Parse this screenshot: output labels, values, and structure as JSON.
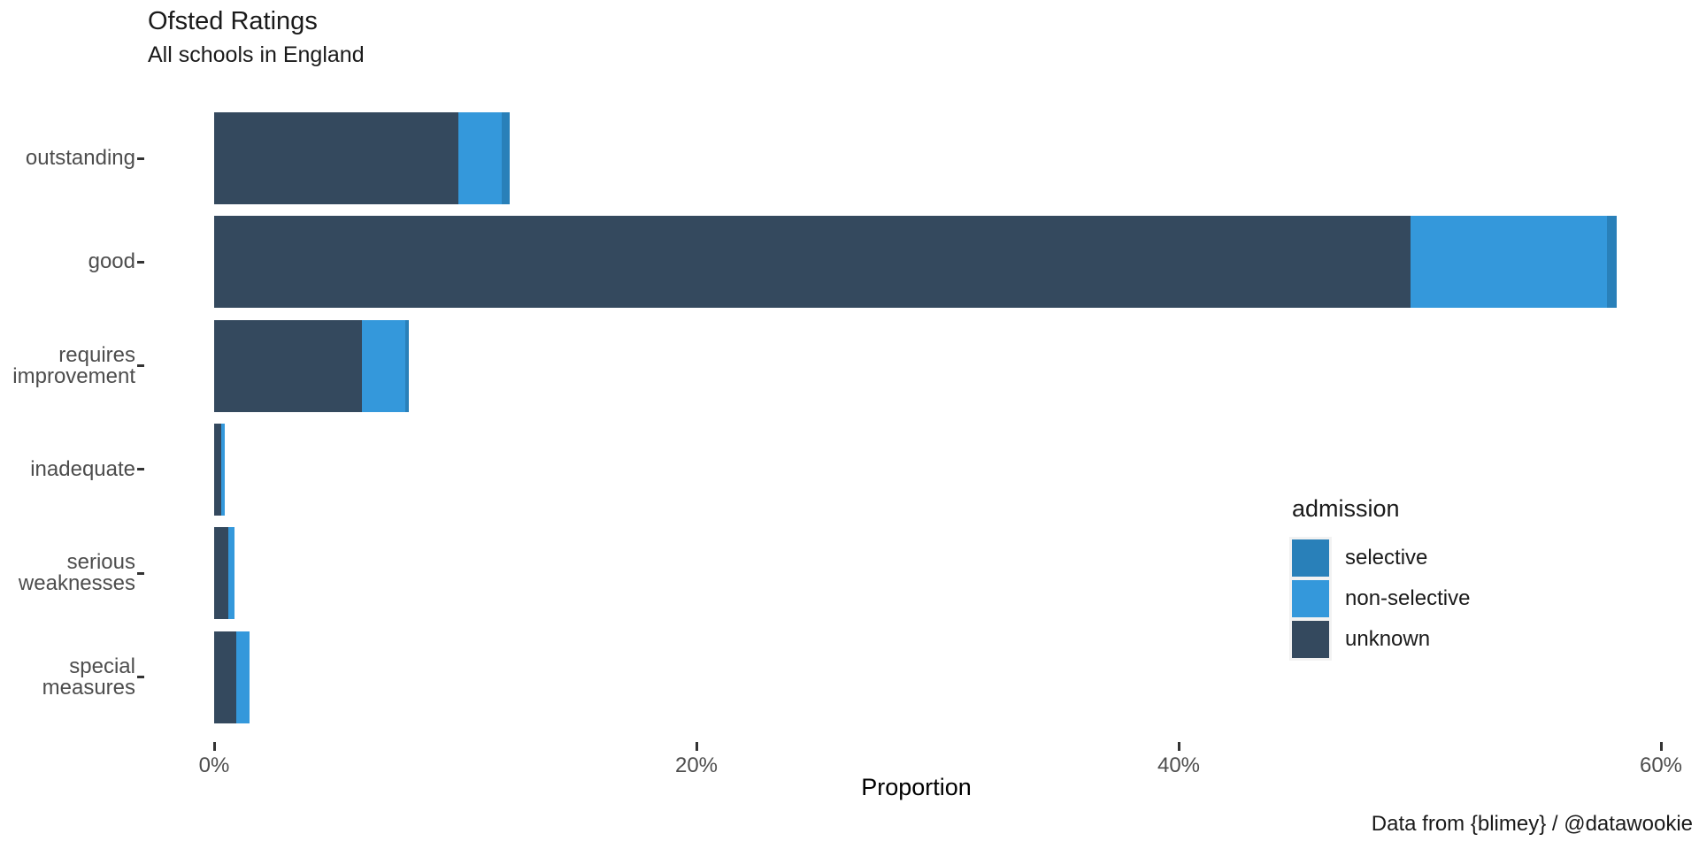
{
  "header": {
    "title": "Ofsted Ratings",
    "subtitle": "All schools in England"
  },
  "caption": "Data from {blimey} / @datawookie",
  "chart_data": {
    "type": "bar",
    "orientation": "horizontal",
    "stacked": true,
    "title": "Ofsted Ratings",
    "subtitle": "All schools in England",
    "xlabel": "Proportion",
    "ylabel": "",
    "grid": false,
    "xlim": [
      0,
      60.5
    ],
    "x_ticks": [
      {
        "value": 0,
        "label": "0%"
      },
      {
        "value": 20,
        "label": "20%"
      },
      {
        "value": 40,
        "label": "40%"
      },
      {
        "value": 60,
        "label": "60%"
      }
    ],
    "categories": [
      "outstanding",
      "good",
      "requires improvement",
      "inadequate",
      "serious weaknesses",
      "special measures"
    ],
    "categories_lines": [
      [
        "outstanding"
      ],
      [
        "good"
      ],
      [
        "requires",
        "improvement"
      ],
      [
        "inadequate"
      ],
      [
        "serious",
        "weaknesses"
      ],
      [
        "special",
        "measures"
      ]
    ],
    "series": [
      {
        "name": "unknown",
        "color": "#34495e",
        "values": [
          10.12,
          49.62,
          6.12,
          0.29,
          0.6,
          0.93
        ]
      },
      {
        "name": "non-selective",
        "color": "#3498db",
        "values": [
          1.79,
          8.14,
          1.79,
          0.16,
          0.25,
          0.53
        ]
      },
      {
        "name": "selective",
        "color": "#2980b9",
        "values": [
          0.34,
          0.4,
          0.15,
          0.0,
          0.0,
          0.0
        ]
      }
    ],
    "legend": {
      "title": "admission",
      "position": "right",
      "items": [
        {
          "label": "selective",
          "color": "#2980b9"
        },
        {
          "label": "non-selective",
          "color": "#3498db"
        },
        {
          "label": "unknown",
          "color": "#34495e"
        }
      ]
    }
  },
  "colors": {
    "background": "#ffffff",
    "axis_text": "#4d4d4d",
    "tick_mark": "#333333",
    "title_text": "#1a1a1a",
    "selective": "#2980b9",
    "non_selective": "#3498db",
    "unknown": "#34495e"
  }
}
